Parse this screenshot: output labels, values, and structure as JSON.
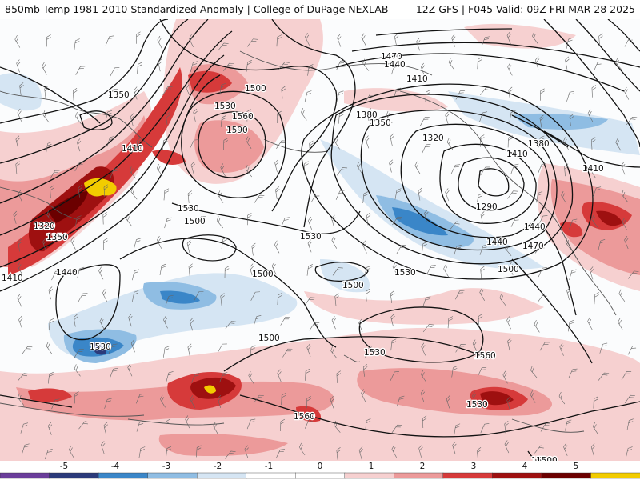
{
  "header": {
    "title": "850mb Temp 1981-2010 Standardized Anomaly | College of DuPage NEXLAB",
    "run": "12Z GFS | F045 Valid: 09Z FRI MAR 28 2025"
  },
  "colors": {
    "neg5": "#6a3d9a",
    "neg4": "#2b3a7a",
    "neg3": "#3a86c8",
    "neg2": "#8fbde3",
    "neg1": "#d5e5f3",
    "zero": "#ffffff",
    "pos1": "#f6d0d0",
    "pos2": "#ec9a9a",
    "pos3": "#d63a3a",
    "pos4": "#9e1010",
    "pos5": "#6b0000",
    "extreme": "#f2cc00",
    "contour": "#111111",
    "coast": "#555555"
  },
  "colorbar": {
    "ticks": [
      "-5",
      "-4",
      "-3",
      "-2",
      "-1",
      "0",
      "1",
      "2",
      "3",
      "4",
      "5"
    ]
  },
  "contours": {
    "labels": [
      "1350",
      "1410",
      "1320",
      "1350",
      "1410",
      "1440",
      "1500",
      "1530",
      "1560",
      "1590",
      "1530",
      "1500",
      "1530",
      "1500",
      "1530",
      "1500",
      "1530",
      "1560",
      "1560",
      "1530",
      "1530",
      "1500",
      "1470",
      "1440",
      "1410",
      "1380",
      "1350",
      "1320",
      "1290",
      "1440",
      "1380",
      "1410",
      "1410",
      "1440",
      "1470",
      "1500",
      "1530",
      "1500"
    ]
  }
}
